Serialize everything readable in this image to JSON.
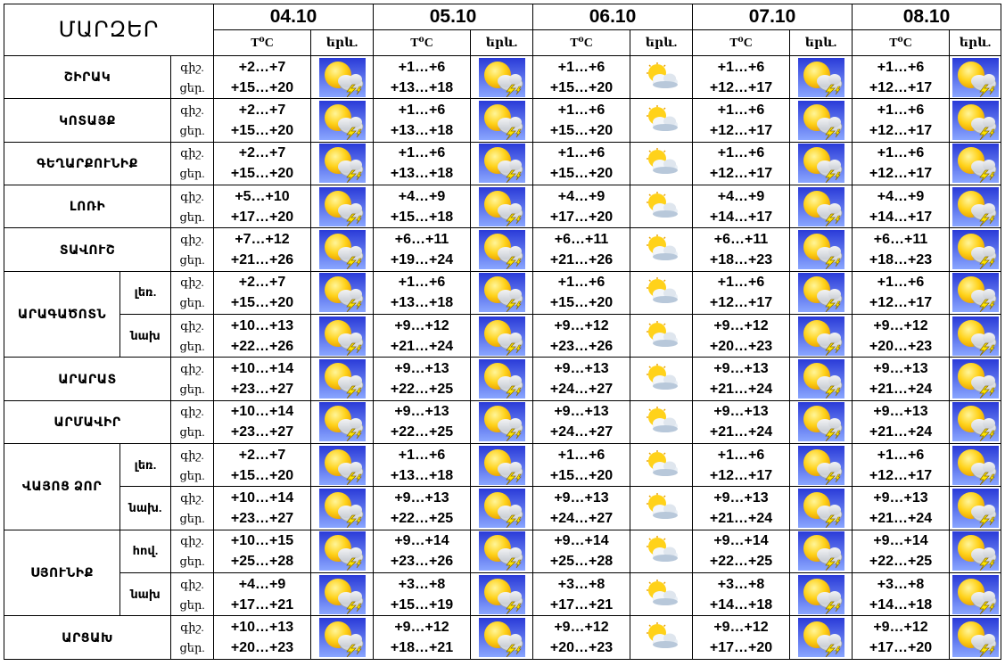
{
  "header": {
    "regions_label": "ՄԱՐԶԵՐ",
    "temp_label": "T⁰C",
    "weather_label": "երև.",
    "dates": [
      "04.10",
      "05.10",
      "06.10",
      "07.10",
      "08.10"
    ]
  },
  "rows": [
    {
      "region": "ՇԻՐԱԿ",
      "zone": "",
      "night_label": "գիշ.",
      "day_label": "ցեր.",
      "days": [
        {
          "night": "+2…+7",
          "day": "+15…+20",
          "icon": "sun-thunderstorm-icon"
        },
        {
          "night": "+1…+6",
          "day": "+13…+18",
          "icon": "sun-thunderstorm-icon"
        },
        {
          "night": "+1…+6",
          "day": "+15…+20",
          "icon": "partly-cloudy-icon"
        },
        {
          "night": "+1…+6",
          "day": "+12…+17",
          "icon": "sun-thunderstorm-icon"
        },
        {
          "night": "+1…+6",
          "day": "+12…+17",
          "icon": "sun-thunderstorm-icon"
        }
      ]
    },
    {
      "region": "ԿՈՏԱՅՔ",
      "zone": "",
      "night_label": "գիշ.",
      "day_label": "ցեր.",
      "days": [
        {
          "night": "+2…+7",
          "day": "+15…+20",
          "icon": "sun-thunderstorm-icon"
        },
        {
          "night": "+1…+6",
          "day": "+13…+18",
          "icon": "sun-thunderstorm-icon"
        },
        {
          "night": "+1…+6",
          "day": "+15…+20",
          "icon": "partly-cloudy-icon"
        },
        {
          "night": "+1…+6",
          "day": "+12…+17",
          "icon": "sun-thunderstorm-icon"
        },
        {
          "night": "+1…+6",
          "day": "+12…+17",
          "icon": "sun-thunderstorm-icon"
        }
      ]
    },
    {
      "region": "ԳԵՂԱՐՔՈՒՆԻՔ",
      "zone": "",
      "night_label": "գիշ.",
      "day_label": "ցեր.",
      "days": [
        {
          "night": "+2…+7",
          "day": "+15…+20",
          "icon": "sun-thunderstorm-icon"
        },
        {
          "night": "+1…+6",
          "day": "+13…+18",
          "icon": "sun-thunderstorm-icon"
        },
        {
          "night": "+1…+6",
          "day": "+15…+20",
          "icon": "partly-cloudy-icon"
        },
        {
          "night": "+1…+6",
          "day": "+12…+17",
          "icon": "sun-thunderstorm-icon"
        },
        {
          "night": "+1…+6",
          "day": "+12…+17",
          "icon": "sun-thunderstorm-icon"
        }
      ]
    },
    {
      "region": "ԼՈՌԻ",
      "zone": "",
      "night_label": "գիշ.",
      "day_label": "ցեր.",
      "days": [
        {
          "night": "+5…+10",
          "day": "+17…+20",
          "icon": "sun-thunderstorm-icon"
        },
        {
          "night": "+4…+9",
          "day": "+15…+18",
          "icon": "sun-thunderstorm-icon"
        },
        {
          "night": "+4…+9",
          "day": "+17…+20",
          "icon": "partly-cloudy-icon"
        },
        {
          "night": "+4…+9",
          "day": "+14…+17",
          "icon": "sun-thunderstorm-icon"
        },
        {
          "night": "+4…+9",
          "day": "+14…+17",
          "icon": "sun-thunderstorm-icon"
        }
      ]
    },
    {
      "region": "ՏԱՎՈՒՇ",
      "zone": "",
      "night_label": "գիշ.",
      "day_label": "ցեր.",
      "days": [
        {
          "night": "+7…+12",
          "day": "+21…+26",
          "icon": "sun-thunderstorm-icon"
        },
        {
          "night": "+6…+11",
          "day": "+19…+24",
          "icon": "sun-thunderstorm-icon"
        },
        {
          "night": "+6…+11",
          "day": "+21…+26",
          "icon": "partly-cloudy-icon"
        },
        {
          "night": "+6…+11",
          "day": "+18…+23",
          "icon": "sun-thunderstorm-icon"
        },
        {
          "night": "+6…+11",
          "day": "+18…+23",
          "icon": "sun-thunderstorm-icon"
        }
      ]
    },
    {
      "region": "ԱՐԱԳԱԾՈՏՆ",
      "zone": "լեռ.",
      "night_label": "գիշ.",
      "day_label": "ցեր.",
      "days": [
        {
          "night": "+2…+7",
          "day": "+15…+20",
          "icon": "sun-thunderstorm-icon"
        },
        {
          "night": "+1…+6",
          "day": "+13…+18",
          "icon": "sun-thunderstorm-icon"
        },
        {
          "night": "+1…+6",
          "day": "+15…+20",
          "icon": "partly-cloudy-icon"
        },
        {
          "night": "+1…+6",
          "day": "+12…+17",
          "icon": "sun-thunderstorm-icon"
        },
        {
          "night": "+1…+6",
          "day": "+12…+17",
          "icon": "sun-thunderstorm-icon"
        }
      ]
    },
    {
      "region": "ԱՐԱԳԱԾՈՏՆ",
      "zone": "նախ",
      "night_label": "գիշ.",
      "day_label": "ցեր.",
      "days": [
        {
          "night": "+10…+13",
          "day": "+22…+26",
          "icon": "sun-thunderstorm-icon"
        },
        {
          "night": "+9…+12",
          "day": "+21…+24",
          "icon": "sun-thunderstorm-icon"
        },
        {
          "night": "+9…+12",
          "day": "+23…+26",
          "icon": "partly-cloudy-icon"
        },
        {
          "night": "+9…+12",
          "day": "+20…+23",
          "icon": "sun-thunderstorm-icon"
        },
        {
          "night": "+9…+12",
          "day": "+20…+23",
          "icon": "sun-thunderstorm-icon"
        }
      ]
    },
    {
      "region": "ԱՐԱՐԱՏ",
      "zone": "",
      "night_label": "գիշ.",
      "day_label": "ցեր.",
      "days": [
        {
          "night": "+10…+14",
          "day": "+23…+27",
          "icon": "sun-thunderstorm-icon"
        },
        {
          "night": "+9…+13",
          "day": "+22…+25",
          "icon": "sun-thunderstorm-icon"
        },
        {
          "night": "+9…+13",
          "day": "+24…+27",
          "icon": "partly-cloudy-icon"
        },
        {
          "night": "+9…+13",
          "day": "+21…+24",
          "icon": "sun-thunderstorm-icon"
        },
        {
          "night": "+9…+13",
          "day": "+21…+24",
          "icon": "sun-thunderstorm-icon"
        }
      ]
    },
    {
      "region": "ԱՐՄԱՎԻՐ",
      "zone": "",
      "night_label": "գիշ.",
      "day_label": "ցեր.",
      "days": [
        {
          "night": "+10…+14",
          "day": "+23…+27",
          "icon": "sun-thunderstorm-icon"
        },
        {
          "night": "+9…+13",
          "day": "+22…+25",
          "icon": "sun-thunderstorm-icon"
        },
        {
          "night": "+9…+13",
          "day": "+24…+27",
          "icon": "partly-cloudy-icon"
        },
        {
          "night": "+9…+13",
          "day": "+21…+24",
          "icon": "sun-thunderstorm-icon"
        },
        {
          "night": "+9…+13",
          "day": "+21…+24",
          "icon": "sun-thunderstorm-icon"
        }
      ]
    },
    {
      "region": "ՎԱՅՈՑ ՁՈՐ",
      "zone": "լեռ.",
      "night_label": "գիշ.",
      "day_label": "ցեր.",
      "days": [
        {
          "night": "+2…+7",
          "day": "+15…+20",
          "icon": "sun-thunderstorm-icon"
        },
        {
          "night": "+1…+6",
          "day": "+13…+18",
          "icon": "sun-thunderstorm-icon"
        },
        {
          "night": "+1…+6",
          "day": "+15…+20",
          "icon": "partly-cloudy-icon"
        },
        {
          "night": "+1…+6",
          "day": "+12…+17",
          "icon": "sun-thunderstorm-icon"
        },
        {
          "night": "+1…+6",
          "day": "+12…+17",
          "icon": "sun-thunderstorm-icon"
        }
      ]
    },
    {
      "region": "ՎԱՅՈՑ ՁՈՐ",
      "zone": "նախ.",
      "night_label": "գիշ.",
      "day_label": "ցեր.",
      "days": [
        {
          "night": "+10…+14",
          "day": "+23…+27",
          "icon": "sun-thunderstorm-icon"
        },
        {
          "night": "+9…+13",
          "day": "+22…+25",
          "icon": "sun-thunderstorm-icon"
        },
        {
          "night": "+9…+13",
          "day": "+24…+27",
          "icon": "partly-cloudy-icon"
        },
        {
          "night": "+9…+13",
          "day": "+21…+24",
          "icon": "sun-thunderstorm-icon"
        },
        {
          "night": "+9…+13",
          "day": "+21…+24",
          "icon": "sun-thunderstorm-icon"
        }
      ]
    },
    {
      "region": "ՍՅՈՒՆԻՔ",
      "zone": "հով.",
      "night_label": "գիշ.",
      "day_label": "ցեր.",
      "days": [
        {
          "night": "+10…+15",
          "day": "+25…+28",
          "icon": "sun-thunderstorm-icon"
        },
        {
          "night": "+9…+14",
          "day": "+23…+26",
          "icon": "sun-thunderstorm-icon"
        },
        {
          "night": "+9…+14",
          "day": "+25…+28",
          "icon": "partly-cloudy-icon"
        },
        {
          "night": "+9…+14",
          "day": "+22…+25",
          "icon": "sun-thunderstorm-icon"
        },
        {
          "night": "+9…+14",
          "day": "+22…+25",
          "icon": "sun-thunderstorm-icon"
        }
      ]
    },
    {
      "region": "ՍՅՈՒՆԻՔ",
      "zone": "նախ",
      "night_label": "գիշ.",
      "day_label": "ցեր.",
      "days": [
        {
          "night": "+4…+9",
          "day": "+17…+21",
          "icon": "sun-thunderstorm-icon"
        },
        {
          "night": "+3…+8",
          "day": "+15…+19",
          "icon": "sun-thunderstorm-icon"
        },
        {
          "night": "+3…+8",
          "day": "+17…+21",
          "icon": "partly-cloudy-icon"
        },
        {
          "night": "+3…+8",
          "day": "+14…+18",
          "icon": "sun-thunderstorm-icon"
        },
        {
          "night": "+3…+8",
          "day": "+14…+18",
          "icon": "sun-thunderstorm-icon"
        }
      ]
    },
    {
      "region": "ԱՐՑԱԽ",
      "zone": "",
      "night_label": "գիշ.",
      "day_label": "ցեր.",
      "days": [
        {
          "night": "+10…+13",
          "day": "+20…+23",
          "icon": "sun-thunderstorm-icon"
        },
        {
          "night": "+9…+12",
          "day": "+18…+21",
          "icon": "sun-thunderstorm-icon"
        },
        {
          "night": "+9…+12",
          "day": "+20…+23",
          "icon": "partly-cloudy-icon"
        },
        {
          "night": "+9…+12",
          "day": "+17…+20",
          "icon": "sun-thunderstorm-icon"
        },
        {
          "night": "+9…+12",
          "day": "+17…+20",
          "icon": "sun-thunderstorm-icon"
        }
      ]
    }
  ],
  "colors": {
    "icon_bg_top": "#2a3bd8",
    "icon_bg_bottom": "#8aa6ff",
    "sun": "#ffd21a",
    "sun_edge": "#e8a000",
    "cloud": "#c9cdd4",
    "lightning": "#ffe600"
  }
}
